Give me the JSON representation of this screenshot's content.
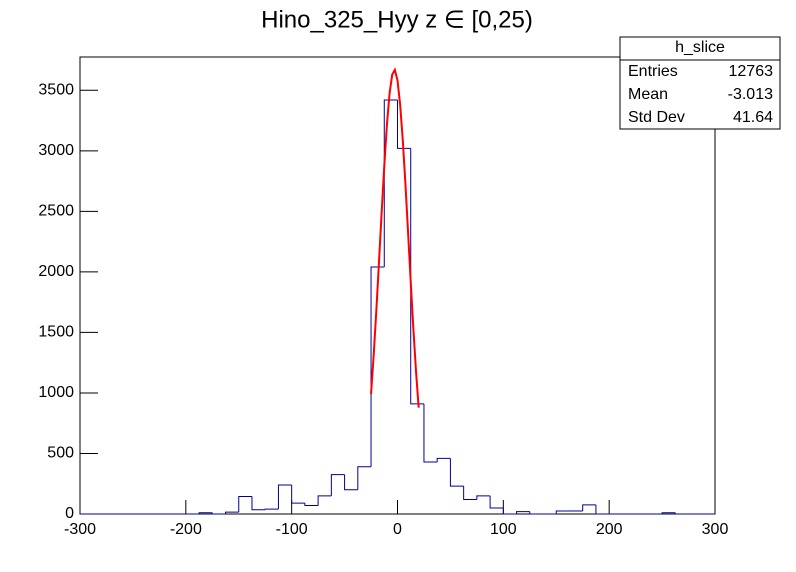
{
  "chart_data": {
    "type": "histogram",
    "title": "Hino_325_Hyy z  ∈ [0,25)",
    "bins": [
      -300,
      -287.5,
      -275,
      -262.5,
      -250,
      -237.5,
      -225,
      -212.5,
      -200,
      -187.5,
      -175,
      -162.5,
      -150,
      -137.5,
      -125,
      -112.5,
      -100,
      -87.5,
      -75,
      -62.5,
      -50,
      -37.5,
      -25,
      -12.5,
      0,
      12.5,
      25,
      37.5,
      50,
      62.5,
      75,
      87.5,
      100,
      112.5,
      125,
      137.5,
      150,
      162.5,
      175,
      187.5,
      200,
      212.5,
      225,
      237.5,
      250,
      262.5,
      275,
      287.5,
      300
    ],
    "values": [
      0,
      0,
      0,
      0,
      0,
      0,
      0,
      0,
      0,
      10,
      0,
      15,
      145,
      35,
      40,
      240,
      90,
      70,
      150,
      325,
      200,
      390,
      2040,
      3420,
      3020,
      910,
      430,
      460,
      230,
      120,
      150,
      50,
      0,
      20,
      0,
      0,
      25,
      25,
      75,
      0,
      0,
      0,
      0,
      0,
      10,
      0,
      0,
      0
    ],
    "color": "#000099",
    "fit": {
      "name": "gaus",
      "color": "#ff0000",
      "x": [
        -25,
        -22.5,
        -20,
        -17.5,
        -15,
        -12.5,
        -10,
        -7.5,
        -5,
        -2.5,
        0,
        2.5,
        5,
        7.5,
        10,
        12.5,
        15,
        17.5,
        20
      ],
      "values": [
        992,
        1313,
        1681,
        2080,
        2487,
        2875,
        3216,
        3474,
        3630,
        3669,
        3582,
        3381,
        3087,
        2725,
        2324,
        1917,
        1529,
        1178,
        878
      ]
    },
    "xlim": [
      -300,
      300
    ],
    "xticks": [
      -300,
      -200,
      -100,
      0,
      100,
      200,
      300
    ],
    "ylim": [
      0,
      3775
    ],
    "yticks": [
      0,
      500,
      1000,
      1500,
      2000,
      2500,
      3000,
      3500
    ],
    "stats": {
      "name": "h_slice",
      "rows": [
        [
          "Entries",
          "12763"
        ],
        [
          "Mean",
          "-3.013"
        ],
        [
          "Std Dev",
          "41.64"
        ]
      ]
    }
  }
}
